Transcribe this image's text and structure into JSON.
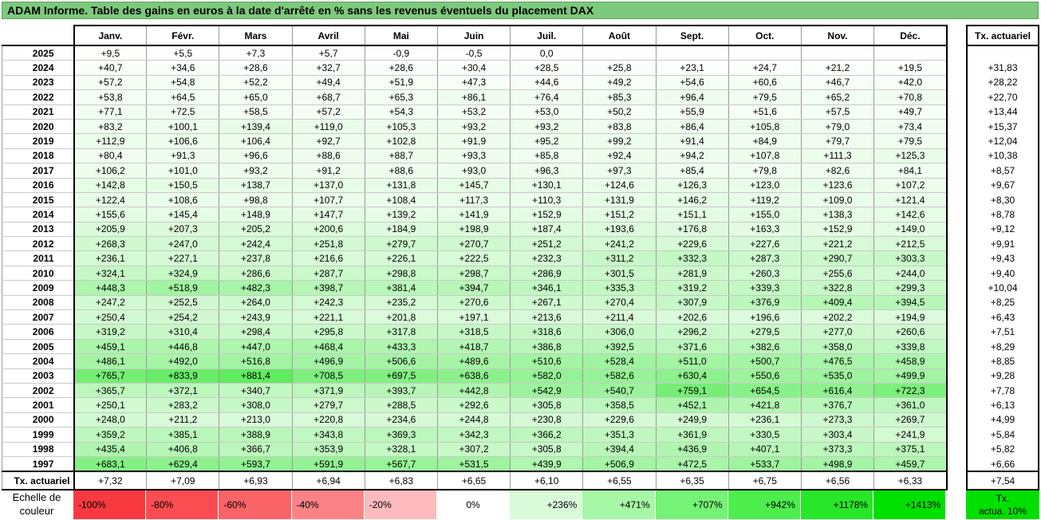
{
  "title": "ADAM Informe. Table des gains en euros à la date d'arrêté en % sans les revenus éventuels du placement DAX",
  "months": [
    "Janv.",
    "Févr.",
    "Mars",
    "Avril",
    "Mai",
    "Juin",
    "Juil.",
    "Août",
    "Sept.",
    "Oct.",
    "Nov.",
    "Déc."
  ],
  "tx_header": "Tx. actuariel",
  "rows": [
    {
      "year": "2025",
      "values": [
        "+9,5",
        "+5,5",
        "+7,3",
        "+5,7",
        "-0,9",
        "-0,5",
        "0,0",
        "",
        "",
        "",
        "",
        ""
      ],
      "tx": ""
    },
    {
      "year": "2024",
      "values": [
        "+40,7",
        "+34,6",
        "+28,6",
        "+32,7",
        "+28,6",
        "+30,4",
        "+28,5",
        "+25,8",
        "+23,1",
        "+24,7",
        "+21,2",
        "+19,5"
      ],
      "tx": "+31,83"
    },
    {
      "year": "2023",
      "values": [
        "+57,2",
        "+54,8",
        "+52,2",
        "+49,4",
        "+51,9",
        "+47,3",
        "+44,6",
        "+49,2",
        "+54,6",
        "+60,6",
        "+46,7",
        "+42,0"
      ],
      "tx": "+28,22"
    },
    {
      "year": "2022",
      "values": [
        "+53,8",
        "+64,5",
        "+65,0",
        "+68,7",
        "+65,3",
        "+86,1",
        "+76,4",
        "+85,3",
        "+96,4",
        "+79,5",
        "+65,2",
        "+70,8"
      ],
      "tx": "+22,70"
    },
    {
      "year": "2021",
      "values": [
        "+77,1",
        "+72,5",
        "+58,5",
        "+57,2",
        "+54,3",
        "+53,2",
        "+53,0",
        "+50,2",
        "+55,9",
        "+51,6",
        "+57,5",
        "+49,7"
      ],
      "tx": "+13,44"
    },
    {
      "year": "2020",
      "values": [
        "+83,2",
        "+100,1",
        "+139,4",
        "+119,0",
        "+105,3",
        "+93,2",
        "+93,2",
        "+83,8",
        "+86,4",
        "+105,8",
        "+79,0",
        "+73,4"
      ],
      "tx": "+15,37"
    },
    {
      "year": "2019",
      "values": [
        "+112,9",
        "+106,6",
        "+106,4",
        "+92,7",
        "+102,8",
        "+91,9",
        "+95,2",
        "+99,2",
        "+91,4",
        "+84,9",
        "+79,7",
        "+79,5"
      ],
      "tx": "+12,04"
    },
    {
      "year": "2018",
      "values": [
        "+80,4",
        "+91,3",
        "+96,6",
        "+88,6",
        "+88,7",
        "+93,3",
        "+85,8",
        "+92,4",
        "+94,2",
        "+107,8",
        "+111,3",
        "+125,3"
      ],
      "tx": "+10,38"
    },
    {
      "year": "2017",
      "values": [
        "+106,2",
        "+101,0",
        "+93,2",
        "+91,2",
        "+88,6",
        "+93,0",
        "+96,3",
        "+97,3",
        "+85,4",
        "+79,8",
        "+82,6",
        "+84,1"
      ],
      "tx": "+8,57"
    },
    {
      "year": "2016",
      "values": [
        "+142,8",
        "+150,5",
        "+138,7",
        "+137,0",
        "+131,8",
        "+145,7",
        "+130,1",
        "+124,6",
        "+126,3",
        "+123,0",
        "+123,6",
        "+107,2"
      ],
      "tx": "+9,67"
    },
    {
      "year": "2015",
      "values": [
        "+122,4",
        "+108,6",
        "+98,8",
        "+107,7",
        "+108,4",
        "+117,3",
        "+110,3",
        "+131,9",
        "+146,2",
        "+119,2",
        "+109,0",
        "+121,4"
      ],
      "tx": "+8,30"
    },
    {
      "year": "2014",
      "values": [
        "+155,6",
        "+145,4",
        "+148,9",
        "+147,7",
        "+139,2",
        "+141,9",
        "+152,9",
        "+151,2",
        "+151,1",
        "+155,0",
        "+138,3",
        "+142,6"
      ],
      "tx": "+8,78"
    },
    {
      "year": "2013",
      "values": [
        "+205,9",
        "+207,3",
        "+205,2",
        "+200,6",
        "+184,9",
        "+198,9",
        "+187,4",
        "+193,6",
        "+176,8",
        "+163,3",
        "+152,9",
        "+149,0"
      ],
      "tx": "+9,12"
    },
    {
      "year": "2012",
      "values": [
        "+268,3",
        "+247,0",
        "+242,4",
        "+251,8",
        "+279,7",
        "+270,7",
        "+251,2",
        "+241,2",
        "+229,6",
        "+227,6",
        "+221,2",
        "+212,5"
      ],
      "tx": "+9,91"
    },
    {
      "year": "2011",
      "values": [
        "+236,1",
        "+227,1",
        "+237,8",
        "+216,6",
        "+226,1",
        "+222,5",
        "+232,3",
        "+311,2",
        "+332,3",
        "+287,3",
        "+290,7",
        "+303,3"
      ],
      "tx": "+9,43"
    },
    {
      "year": "2010",
      "values": [
        "+324,1",
        "+324,9",
        "+286,6",
        "+287,7",
        "+298,8",
        "+298,7",
        "+286,9",
        "+301,5",
        "+281,9",
        "+260,3",
        "+255,6",
        "+244,0"
      ],
      "tx": "+9,40"
    },
    {
      "year": "2009",
      "values": [
        "+448,3",
        "+518,9",
        "+482,3",
        "+398,7",
        "+381,4",
        "+394,7",
        "+346,1",
        "+335,3",
        "+319,2",
        "+339,3",
        "+322,8",
        "+299,3"
      ],
      "tx": "+10,04"
    },
    {
      "year": "2008",
      "values": [
        "+247,2",
        "+252,5",
        "+264,0",
        "+242,3",
        "+235,2",
        "+270,6",
        "+267,1",
        "+270,4",
        "+307,9",
        "+376,9",
        "+409,4",
        "+394,5"
      ],
      "tx": "+8,25"
    },
    {
      "year": "2007",
      "values": [
        "+250,4",
        "+254,2",
        "+243,9",
        "+221,1",
        "+201,8",
        "+197,1",
        "+213,6",
        "+211,4",
        "+202,6",
        "+196,6",
        "+202,2",
        "+194,9"
      ],
      "tx": "+6,43"
    },
    {
      "year": "2006",
      "values": [
        "+319,2",
        "+310,4",
        "+298,4",
        "+295,8",
        "+317,8",
        "+318,5",
        "+318,6",
        "+306,0",
        "+296,2",
        "+279,5",
        "+277,0",
        "+260,6"
      ],
      "tx": "+7,51"
    },
    {
      "year": "2005",
      "values": [
        "+459,1",
        "+446,8",
        "+447,0",
        "+468,4",
        "+433,3",
        "+418,7",
        "+386,8",
        "+392,5",
        "+371,6",
        "+382,6",
        "+358,0",
        "+339,8"
      ],
      "tx": "+8,29"
    },
    {
      "year": "2004",
      "values": [
        "+486,1",
        "+492,0",
        "+516,8",
        "+496,9",
        "+506,6",
        "+489,6",
        "+510,6",
        "+528,4",
        "+511,0",
        "+500,7",
        "+476,5",
        "+458,9"
      ],
      "tx": "+8,85"
    },
    {
      "year": "2003",
      "values": [
        "+765,7",
        "+833,9",
        "+881,4",
        "+708,5",
        "+697,5",
        "+638,6",
        "+582,0",
        "+582,6",
        "+630,4",
        "+550,6",
        "+535,0",
        "+499,9"
      ],
      "tx": "+9,28"
    },
    {
      "year": "2002",
      "values": [
        "+365,7",
        "+372,1",
        "+340,7",
        "+371,9",
        "+393,7",
        "+442,8",
        "+542,9",
        "+540,7",
        "+759,1",
        "+654,5",
        "+616,4",
        "+722,3"
      ],
      "tx": "+7,78"
    },
    {
      "year": "2001",
      "values": [
        "+250,1",
        "+283,2",
        "+308,0",
        "+279,7",
        "+288,5",
        "+292,6",
        "+305,8",
        "+358,5",
        "+452,1",
        "+421,8",
        "+376,7",
        "+361,0"
      ],
      "tx": "+6,13"
    },
    {
      "year": "2000",
      "values": [
        "+248,0",
        "+211,2",
        "+213,0",
        "+220,8",
        "+234,6",
        "+244,8",
        "+230,8",
        "+229,6",
        "+249,9",
        "+236,1",
        "+273,3",
        "+269,7"
      ],
      "tx": "+4,99"
    },
    {
      "year": "1999",
      "values": [
        "+359,2",
        "+385,1",
        "+388,9",
        "+343,8",
        "+369,3",
        "+342,3",
        "+366,2",
        "+351,3",
        "+361,9",
        "+330,5",
        "+303,4",
        "+241,9"
      ],
      "tx": "+5,84"
    },
    {
      "year": "1998",
      "values": [
        "+435,4",
        "+406,8",
        "+366,7",
        "+353,9",
        "+328,1",
        "+307,2",
        "+305,8",
        "+394,4",
        "+436,9",
        "+407,1",
        "+373,3",
        "+375,1"
      ],
      "tx": "+5,82"
    },
    {
      "year": "1997",
      "values": [
        "+683,1",
        "+629,4",
        "+593,7",
        "+591,9",
        "+567,7",
        "+531,5",
        "+439,9",
        "+506,9",
        "+472,5",
        "+533,7",
        "+498,9",
        "+459,7"
      ],
      "tx": "+6,66"
    }
  ],
  "footer": {
    "label": "Tx. actuariel",
    "values": [
      "+7,32",
      "+7,09",
      "+6,93",
      "+6,94",
      "+6,83",
      "+6,65",
      "+6,10",
      "+6,55",
      "+6,35",
      "+6,75",
      "+6,56",
      "+6,33"
    ],
    "tx": "+7,54"
  },
  "color_scale": {
    "label_line1": "Echelle de",
    "label_line2": "couleur",
    "cells": [
      {
        "label": "-100%",
        "color": "#f8393f",
        "align": "left"
      },
      {
        "label": "-80%",
        "color": "#f94d52",
        "align": "left"
      },
      {
        "label": "-60%",
        "color": "#fa6368",
        "align": "left"
      },
      {
        "label": "-40%",
        "color": "#fb8387",
        "align": "left"
      },
      {
        "label": "-20%",
        "color": "#fdbbbd",
        "align": "left"
      },
      {
        "label": "0%",
        "color": "#ffffff",
        "align": "center"
      },
      {
        "label": "+236%",
        "color": "#d9fbd9",
        "align": "right"
      },
      {
        "label": "+471%",
        "color": "#a6f7a6",
        "align": "right"
      },
      {
        "label": "+707%",
        "color": "#76f276",
        "align": "right"
      },
      {
        "label": "+942%",
        "color": "#4eed4e",
        "align": "right"
      },
      {
        "label": "+1178%",
        "color": "#28e628",
        "align": "right"
      },
      {
        "label": "+1413%",
        "color": "#00e000",
        "align": "right"
      }
    ],
    "tx_legend_line1": "Tx.",
    "tx_legend_line2": "actua. 10%",
    "tx_legend_color": "#00e000"
  }
}
